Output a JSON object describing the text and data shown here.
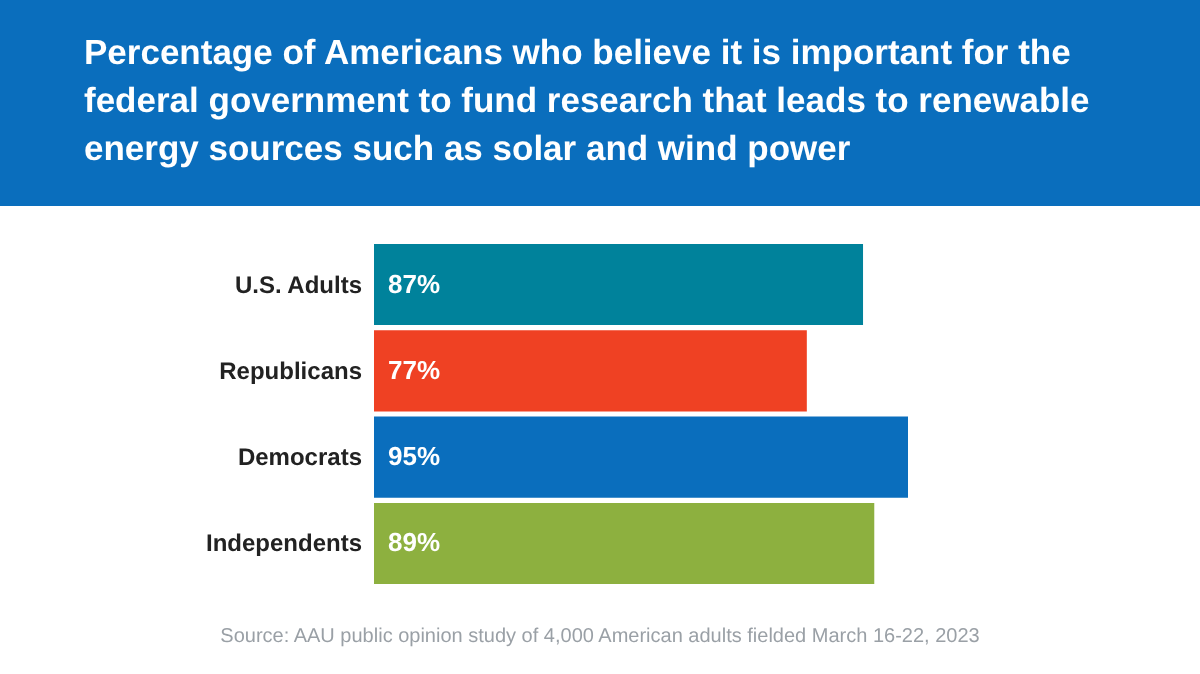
{
  "chart_data": {
    "type": "bar",
    "orientation": "horizontal",
    "title": "Percentage of Americans who believe it is important for the federal government to fund research that leads to renewable energy sources such as solar and wind power",
    "categories": [
      "U.S. Adults",
      "Republicans",
      "Democrats",
      "Independents"
    ],
    "values": [
      87,
      77,
      95,
      89
    ],
    "value_labels": [
      "87%",
      "77%",
      "95%",
      "89%"
    ],
    "colors": [
      "#00829b",
      "#ef4123",
      "#0a6ebd",
      "#8db03f"
    ],
    "annotations": [
      "Source: AAU public opinion study of 4,000 American adults fielded March 16-22, 2023"
    ]
  }
}
